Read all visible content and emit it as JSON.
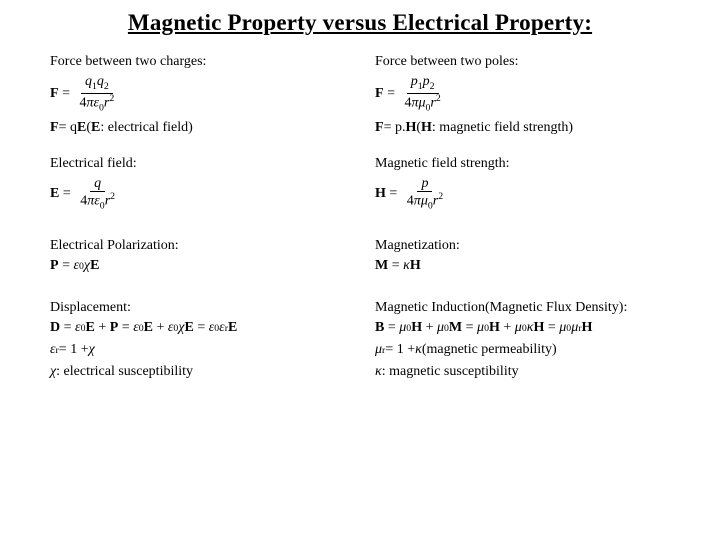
{
  "title": "Magnetic Property versus Electrical Property:",
  "left": {
    "h1": "Force between two charges:",
    "f1_lhs": "F",
    "f1_num_a": "q",
    "f1_num_asub": "1",
    "f1_num_b": "q",
    "f1_num_bsub": "2",
    "f1_den_pre": "4",
    "f1_den_pi": "π",
    "f1_den_eps": "ε",
    "f1_den_epssub": "0",
    "f1_den_r": "r",
    "f1_den_rsup": "2",
    "f2_lhs": "F",
    "f2_eq": " = q",
    "f2_E": "E",
    "f2_note_open": " (",
    "f2_note_E": "E",
    "f2_note_rest": ": electrical field)",
    "h2": "Electrical field:",
    "f3_lhs": "E",
    "f3_num": "q",
    "f3_den_pre": "4",
    "f3_den_pi": "π",
    "f3_den_eps": "ε",
    "f3_den_epssub": "0",
    "f3_den_r": "r",
    "f3_den_rsup": "2",
    "h3": "Electrical Polarization:",
    "f4_lhs": "P",
    "f4_eps": "ε",
    "f4_epssub": "0",
    "f4_chi": "χ",
    "f4_E": "E",
    "h4": "Displacement:",
    "f5_lhs": "D",
    "f5_t1_eps": "ε",
    "f5_t1_sub": "0",
    "f5_t1_E": "E",
    "f5_P": "P",
    "f5_t2_eps": "ε",
    "f5_t2_sub": "0",
    "f5_t2_E": "E",
    "f5_t3_eps": "ε",
    "f5_t3_sub": "0",
    "f5_t3_chi": "χ",
    "f5_t3_E": "E",
    "f5_t4_eps": "ε",
    "f5_t4_sub": "0",
    "f5_t4_epsr": "ε",
    "f5_t4_rsub": "r",
    "f5_t4_E": "E",
    "f6_eps": "ε",
    "f6_sub": "r",
    "f6_rest": " = 1 + ",
    "f6_chi": "χ",
    "f7_chi": "χ",
    "f7_rest": " :  electrical susceptibility"
  },
  "right": {
    "h1": "Force between two poles:",
    "f1_lhs": "F",
    "f1_num_a": "p",
    "f1_num_asub": "1",
    "f1_num_b": "p",
    "f1_num_bsub": "2",
    "f1_den_pre": "4",
    "f1_den_pi": "π",
    "f1_den_mu": "μ",
    "f1_den_musub": "0",
    "f1_den_r": "r",
    "f1_den_rsup": "2",
    "f2_lhs": "F",
    "f2_eq": " = p.",
    "f2_H": "H",
    "f2_note_open": " (",
    "f2_note_H": "H",
    "f2_note_rest": ": magnetic field strength)",
    "h2": "Magnetic field strength:",
    "f3_lhs": "H",
    "f3_num": "p",
    "f3_den_pre": "4",
    "f3_den_pi": "π",
    "f3_den_mu": "μ",
    "f3_den_musub": "0",
    "f3_den_r": "r",
    "f3_den_rsup": "2",
    "h3": "Magnetization:",
    "f4_lhs": "M",
    "f4_kappa": "κ",
    "f4_H": "H",
    "h4": "Magnetic Induction(Magnetic Flux Density):",
    "f5_lhs": "B",
    "f5_t1_mu": "μ",
    "f5_t1_sub": "0",
    "f5_t1_H": "H",
    "f5_t2_mu": "μ",
    "f5_t2_sub": "0",
    "f5_t2_M": "M",
    "f5_t3_mu": "μ",
    "f5_t3_sub": "0",
    "f5_t3_H": "H",
    "f5_t4_mu": "μ",
    "f5_t4_sub": "0",
    "f5_t4_kappa": "κ",
    "f5_t4_H": "H",
    "f5_t5_mu": "μ",
    "f5_t5_sub": "0",
    "f5_t5_mur": "μ",
    "f5_t5_rsub": "r",
    "f5_t5_H": "H",
    "f6_mu": "μ",
    "f6_sub": "r",
    "f6_rest": " = 1 + ",
    "f6_kappa": "κ",
    "f6_note": " (magnetic permeability)",
    "f7_kappa": "κ",
    "f7_rest": " :  magnetic susceptibility"
  }
}
